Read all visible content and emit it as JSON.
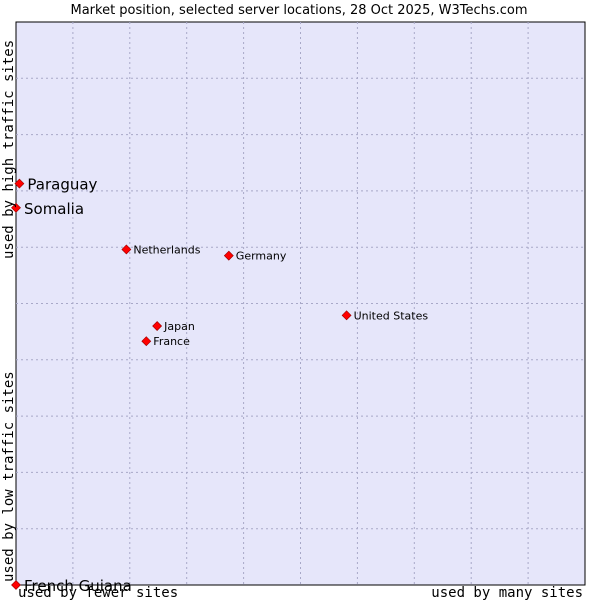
{
  "chart_data": {
    "type": "scatter",
    "title": "Market position, selected server locations, 28 Oct 2025, W3Techs.com",
    "xlabel_left": "used by fewer sites",
    "xlabel_right": "used by many sites",
    "ylabel_top": "used by high traffic sites",
    "ylabel_bottom": "used by low traffic sites",
    "xlim": [
      0,
      100
    ],
    "ylim": [
      0,
      100
    ],
    "grid": true,
    "colors": {
      "plot_background": "#e6e6fa",
      "grid": "#a8a8c8",
      "point": "#ff0000",
      "point_stroke": "#990000"
    },
    "points": [
      {
        "name": "Paraguay",
        "x": 0.6,
        "y": 71.3,
        "emphasis": true
      },
      {
        "name": "Somalia",
        "x": 0.0,
        "y": 67.0,
        "emphasis": true
      },
      {
        "name": "Netherlands",
        "x": 19.4,
        "y": 59.6,
        "emphasis": false
      },
      {
        "name": "Germany",
        "x": 37.4,
        "y": 58.5,
        "emphasis": false
      },
      {
        "name": "United States",
        "x": 58.1,
        "y": 47.9,
        "emphasis": false
      },
      {
        "name": "Japan",
        "x": 24.8,
        "y": 46.0,
        "emphasis": false
      },
      {
        "name": "France",
        "x": 22.9,
        "y": 43.3,
        "emphasis": false
      },
      {
        "name": "French Guiana",
        "x": 0.0,
        "y": 0.0,
        "emphasis": true
      }
    ]
  }
}
